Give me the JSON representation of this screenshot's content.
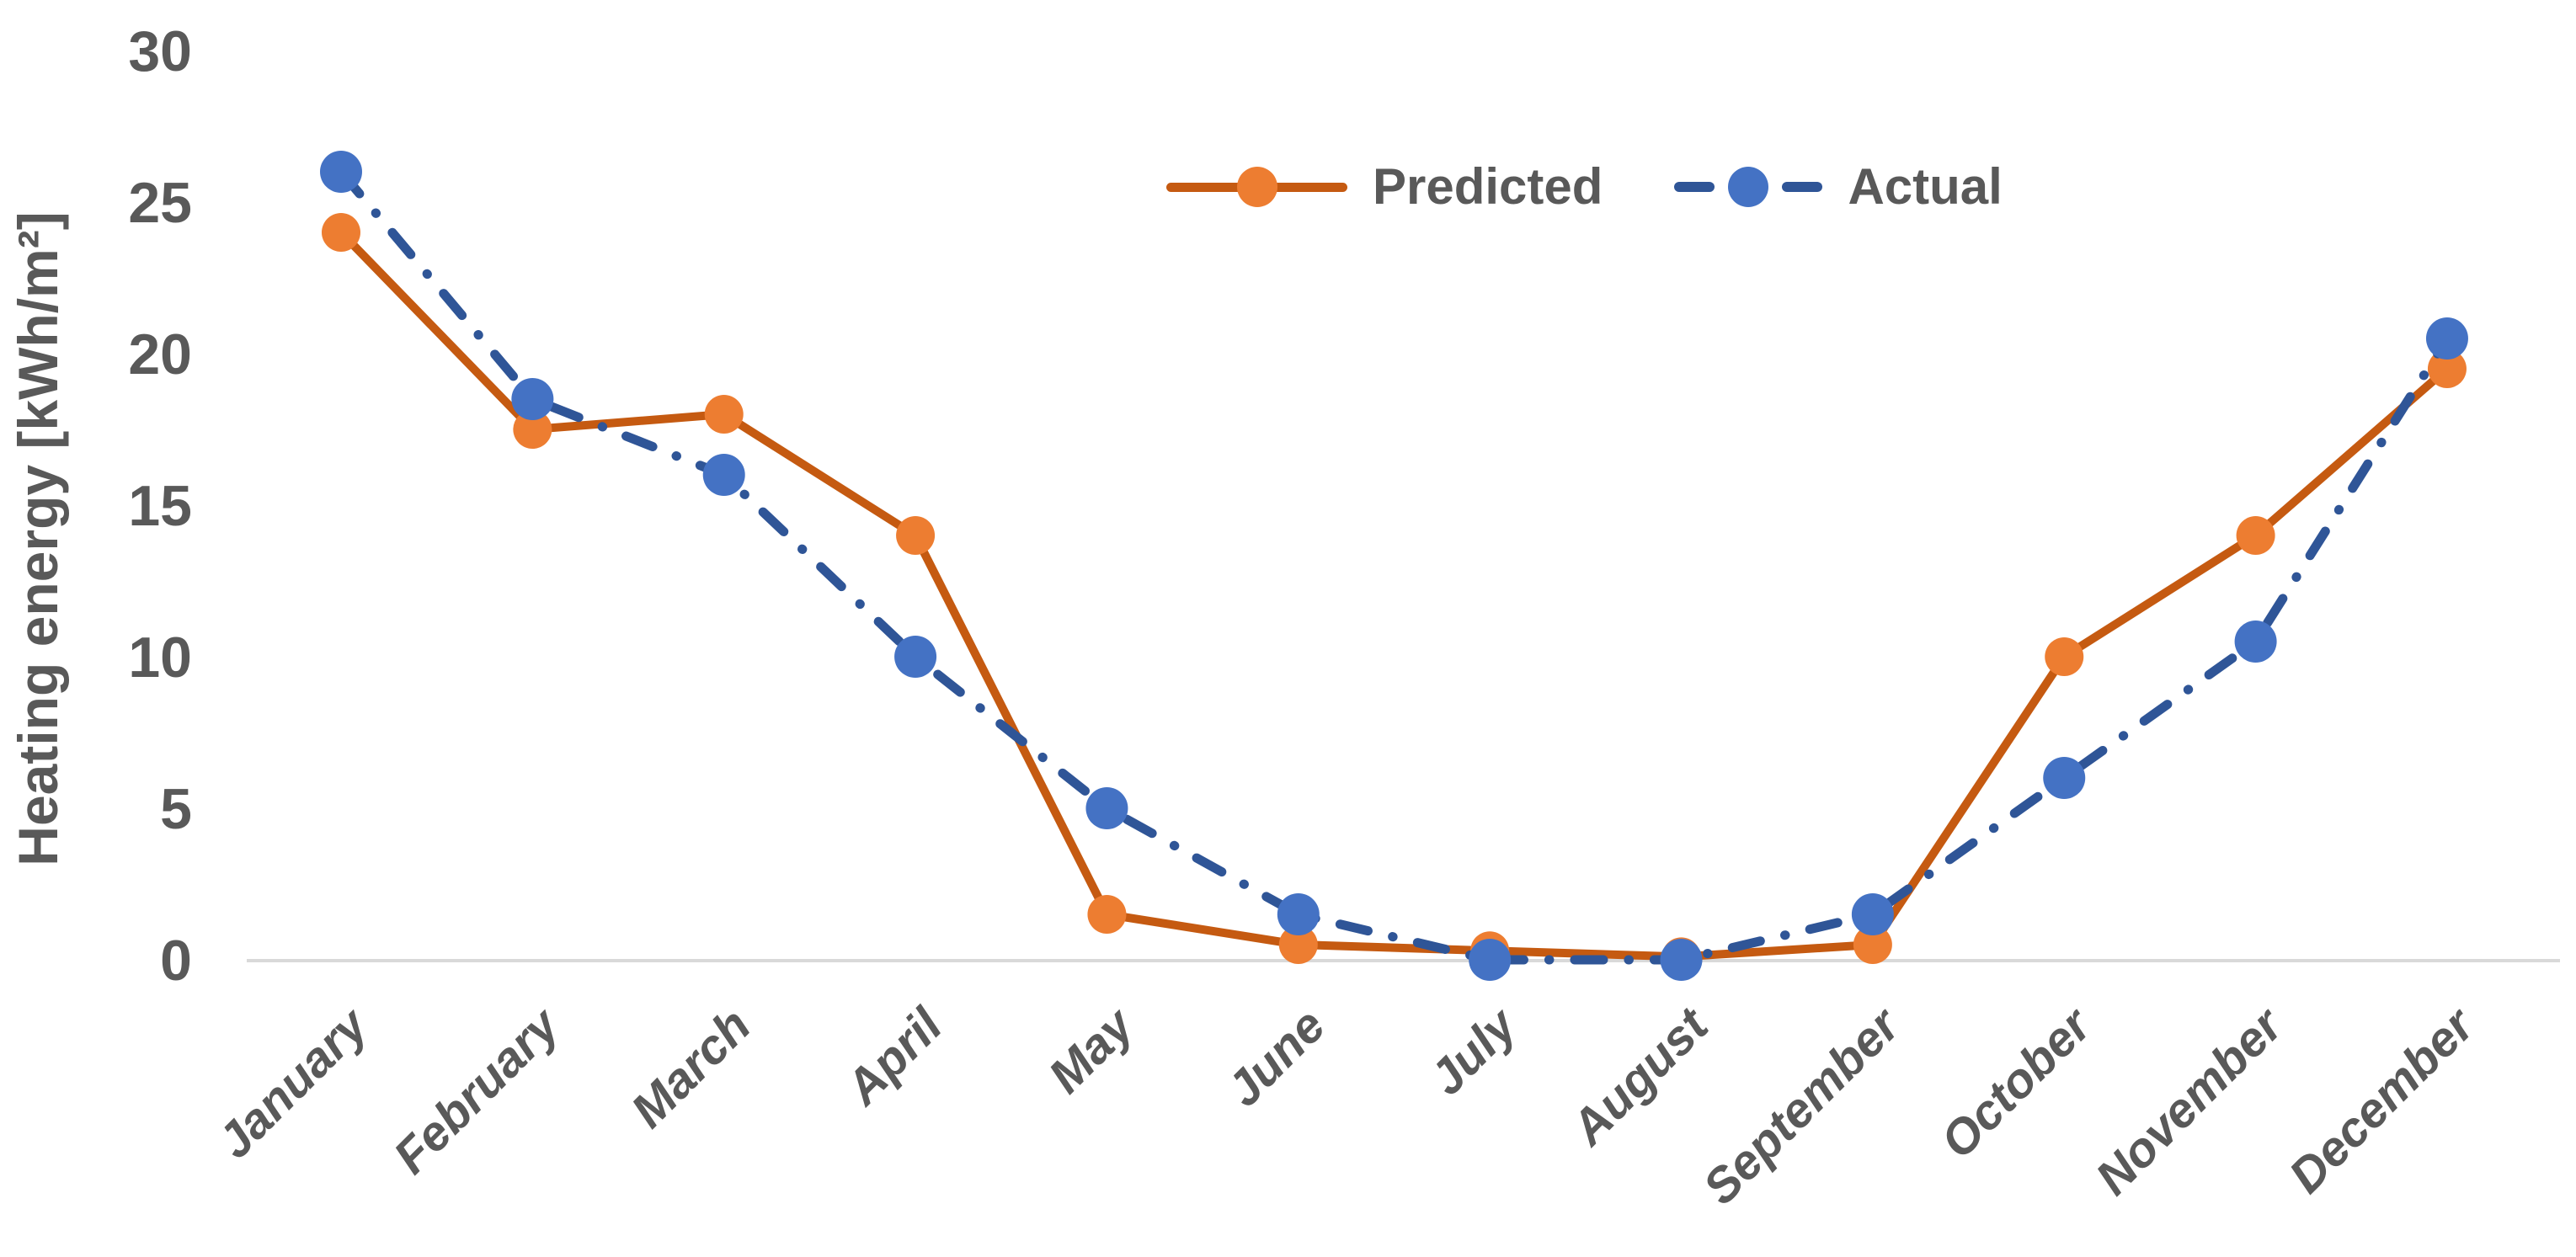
{
  "chart_data": {
    "type": "line",
    "categories": [
      "January",
      "February",
      "March",
      "April",
      "May",
      "June",
      "July",
      "August",
      "September",
      "October",
      "November",
      "December"
    ],
    "series": [
      {
        "name": "Predicted",
        "values": [
          24,
          17.5,
          18,
          14,
          1.5,
          0.5,
          0.3,
          0.1,
          0.5,
          10,
          14,
          19.5
        ],
        "line_style": "solid",
        "line_color": "#C55A11",
        "marker_color": "#ED7D31"
      },
      {
        "name": "Actual",
        "values": [
          26,
          18.5,
          16,
          10,
          5,
          1.5,
          0,
          0,
          1.5,
          6,
          10.5,
          20.5
        ],
        "line_style": "dash-dot",
        "line_color": "#2F5597",
        "marker_color": "#4472C4"
      }
    ],
    "title": "",
    "xlabel": "",
    "ylabel": "Heating energy [kWh/m²]",
    "ylim": [
      0,
      30
    ],
    "yticks": [
      30,
      25,
      20,
      15,
      10,
      5,
      0
    ],
    "grid": "zero-baseline-only",
    "legend_position": "top-center",
    "axis_text_color": "#595959",
    "gridline_color": "#D9D9D9",
    "background_color": "#FFFFFF"
  }
}
